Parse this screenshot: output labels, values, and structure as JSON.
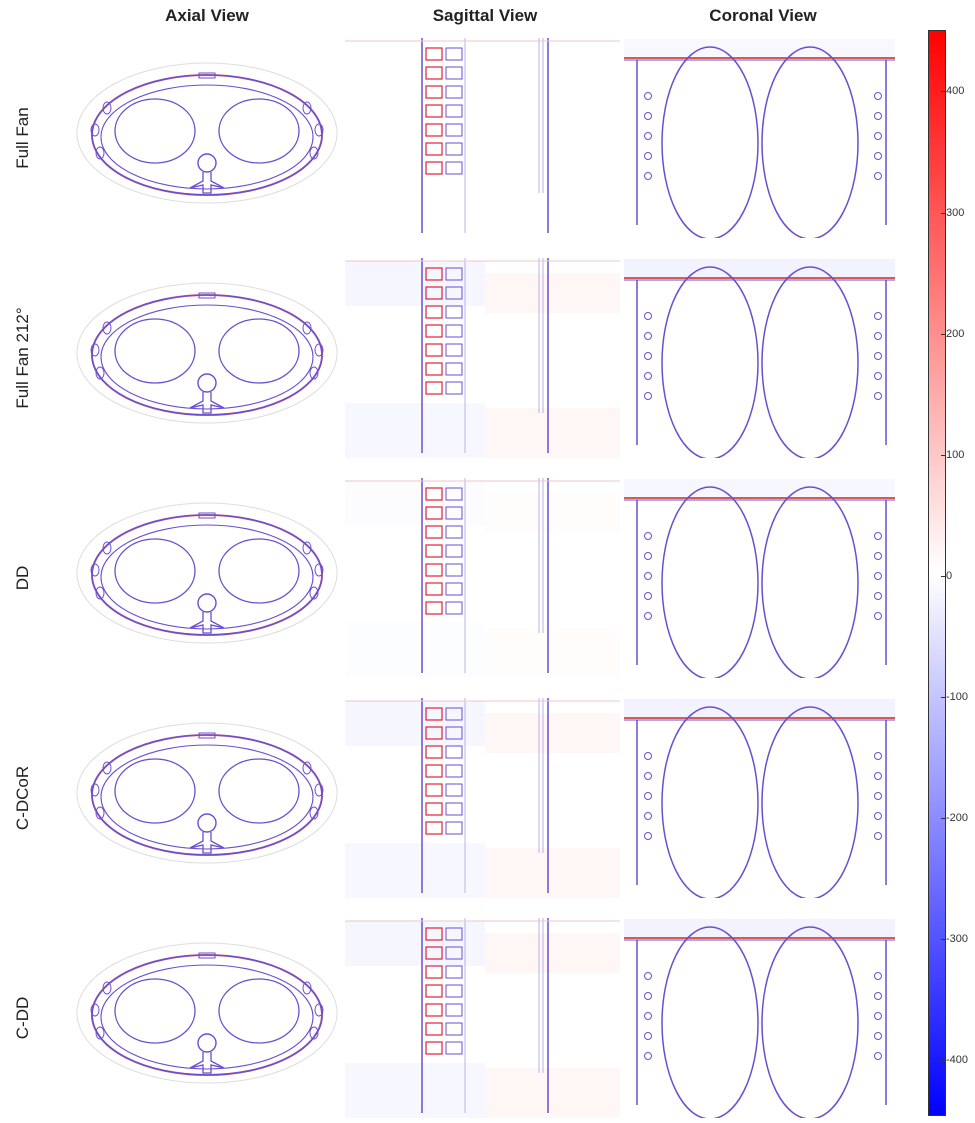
{
  "columns": [
    "Axial View",
    "Sagittal View",
    "Coronal View"
  ],
  "rows": [
    "Full Fan",
    "Full Fan 212°",
    "DD",
    "C-DCoR",
    "C-DD"
  ],
  "colorbar": {
    "ticks": [
      "400",
      "300",
      "200",
      "100",
      "0",
      "-100",
      "-200",
      "-300",
      "-400"
    ],
    "colors": {
      "max": "#ff0000",
      "mid": "#ffffff",
      "min": "#0000ff"
    }
  }
}
